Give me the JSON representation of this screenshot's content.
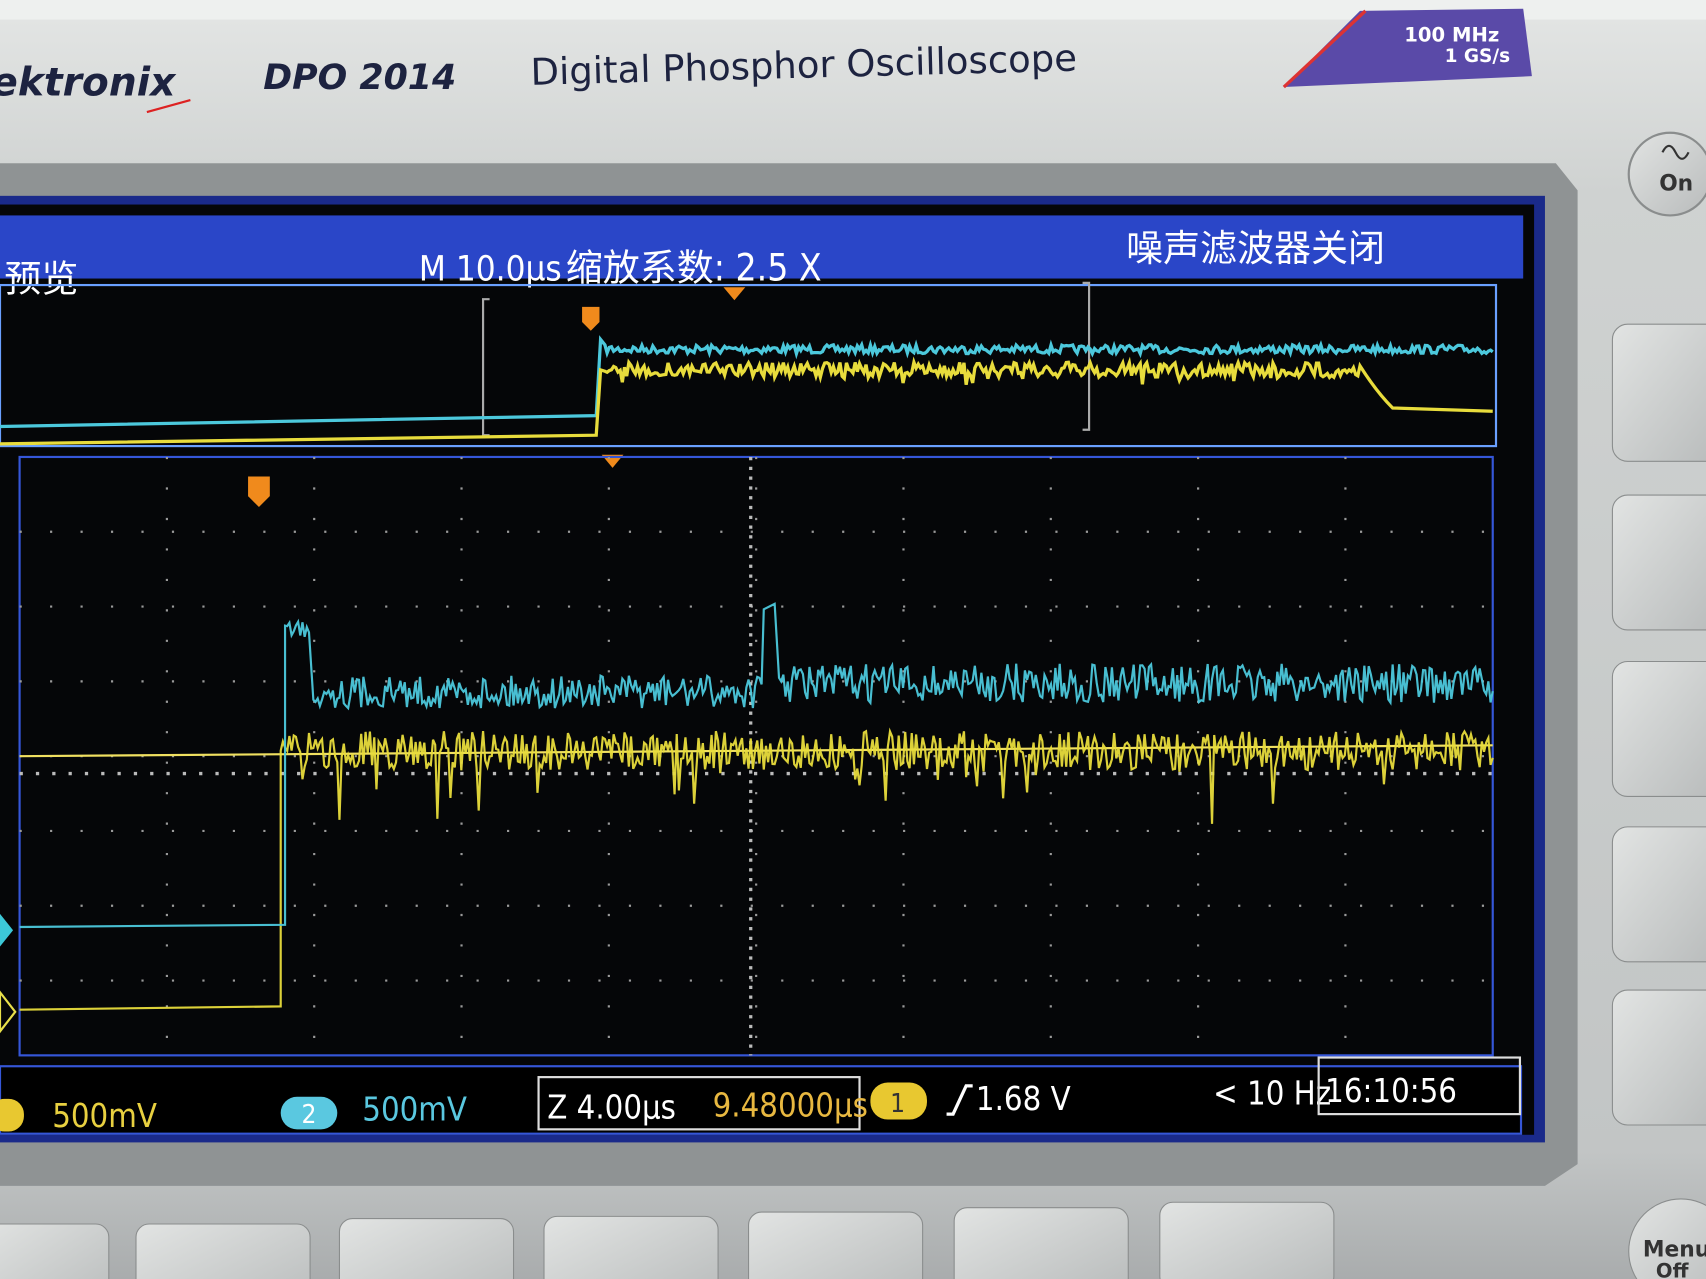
{
  "panel": {
    "brand": "ektronix",
    "model": "DPO 2014",
    "product": "Digital Phosphor Oscilloscope",
    "badge": {
      "bandwidth": "100 MHz",
      "sample_rate": "1 GS/s"
    }
  },
  "screen": {
    "header": {
      "mode": "预览",
      "timebase": "M 10.0µs",
      "zoom": "缩放系数: 2.5 X",
      "filter": "噪声滤波器关闭"
    },
    "status": {
      "ch1_scale": "500mV",
      "ch2_number": "2",
      "ch2_scale": "500mV",
      "zoom_scale": "Z 4.00µs",
      "position": "9.48000µs",
      "trigger_source": "1",
      "trigger_level": "1.68 V",
      "frequency": "< 10 Hz",
      "clock": "16:10:56"
    }
  },
  "buttons": {
    "power": "On",
    "menu": "Menu",
    "menu_sub": "Off"
  }
}
